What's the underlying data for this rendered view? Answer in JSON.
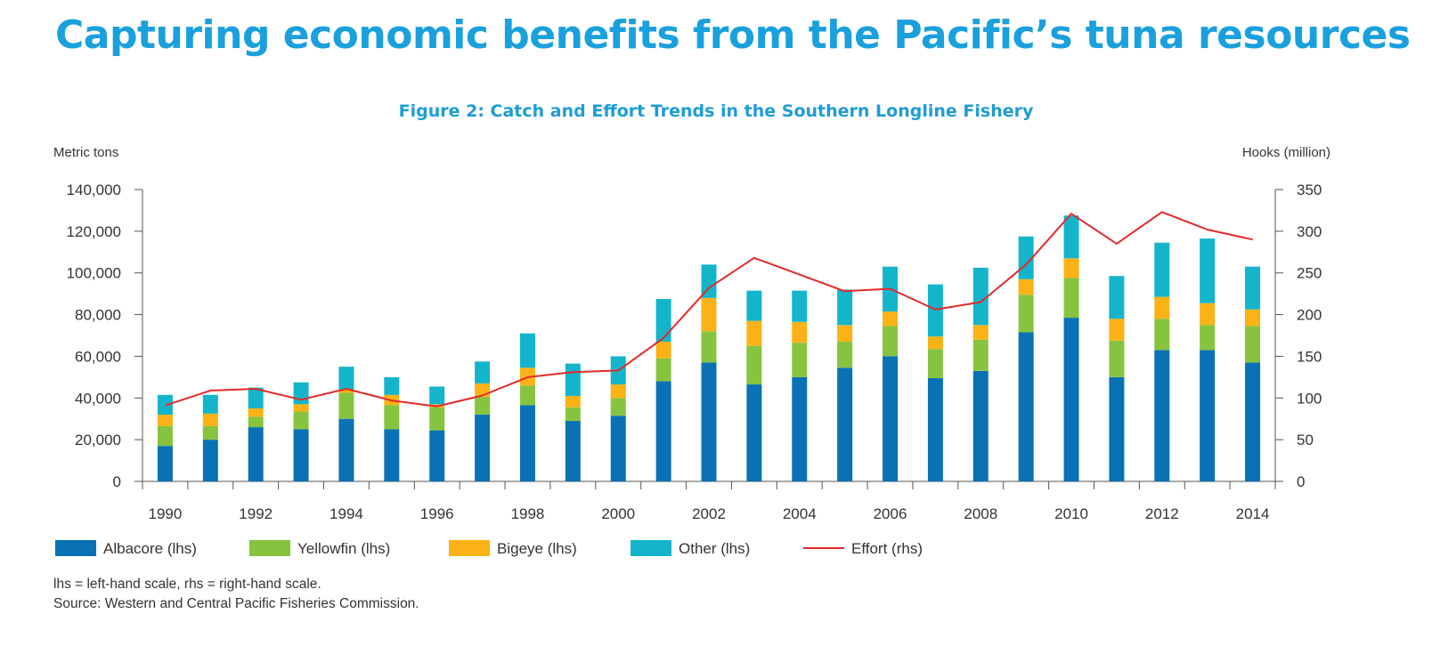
{
  "page": {
    "title": "Capturing economic benefits from the Pacific’s tuna resources",
    "footnote": "lhs = left-hand scale, rhs = right-hand scale.",
    "source": "Source: Western and Central Pacific Fisheries Commission."
  },
  "chart_data": {
    "type": "bar",
    "title": "Figure 2: Catch and Effort Trends in the Southern Longline Fishery",
    "ylabel": "Metric tons",
    "y2label": "Hooks (million)",
    "ylim": [
      0,
      140000
    ],
    "y2lim": [
      0,
      350
    ],
    "yticks": [
      "0",
      "20,000",
      "40,000",
      "60,000",
      "80,000",
      "100,000",
      "120,000",
      "140,000"
    ],
    "y2ticks": [
      "0",
      "50",
      "100",
      "150",
      "200",
      "250",
      "300",
      "350"
    ],
    "xticks": [
      "1990",
      "1992",
      "1994",
      "1996",
      "1998",
      "2000",
      "2002",
      "2004",
      "2006",
      "2008",
      "2010",
      "2012",
      "2014"
    ],
    "stacked": true,
    "grid": false,
    "legend_position": "bottom",
    "categories": [
      "1990",
      "1991",
      "1992",
      "1993",
      "1994",
      "1995",
      "1996",
      "1997",
      "1998",
      "1999",
      "2000",
      "2001",
      "2002",
      "2003",
      "2004",
      "2005",
      "2006",
      "2007",
      "2008",
      "2009",
      "2010",
      "2011",
      "2012",
      "2013",
      "2014"
    ],
    "series": [
      {
        "name": "Albacore (lhs)",
        "axis": "left",
        "color": "#0a71b4",
        "values": [
          17000,
          20000,
          26000,
          25000,
          30000,
          25000,
          24500,
          32000,
          36500,
          29000,
          31500,
          48000,
          57000,
          46500,
          50000,
          54500,
          60000,
          49500,
          53000,
          71500,
          78500,
          50000,
          63000,
          63000,
          57000
        ]
      },
      {
        "name": "Yellowfin (lhs)",
        "axis": "left",
        "color": "#86c440",
        "values": [
          9500,
          6500,
          5000,
          8500,
          12500,
          11500,
          11000,
          8500,
          9500,
          6500,
          8500,
          11000,
          15000,
          18500,
          16500,
          12500,
          14500,
          14000,
          15000,
          18000,
          19000,
          17500,
          15000,
          12000,
          17500
        ]
      },
      {
        "name": "Bigeye (lhs)",
        "axis": "left",
        "color": "#fbb216",
        "values": [
          5500,
          6000,
          4000,
          3500,
          1500,
          5000,
          1500,
          6500,
          8500,
          5500,
          6500,
          8000,
          16000,
          12000,
          10000,
          8000,
          7000,
          6000,
          7000,
          7500,
          9500,
          10500,
          10500,
          10500,
          8000
        ]
      },
      {
        "name": "Other (lhs)",
        "axis": "left",
        "color": "#14b5cb",
        "values": [
          9500,
          9000,
          10000,
          10500,
          11000,
          8500,
          8500,
          10500,
          16500,
          15500,
          13500,
          20500,
          16000,
          14500,
          15000,
          17000,
          21500,
          25000,
          27500,
          20500,
          20500,
          20500,
          26000,
          31000,
          20500
        ]
      },
      {
        "name": "Effort (rhs)",
        "axis": "right",
        "type": "line",
        "color": "#e32a2a",
        "values": [
          91,
          109,
          111,
          98,
          111,
          97,
          90,
          103,
          125,
          131,
          133,
          172,
          232,
          268,
          248,
          228,
          231,
          206,
          215,
          260,
          321,
          285,
          323,
          302,
          290
        ]
      }
    ]
  }
}
